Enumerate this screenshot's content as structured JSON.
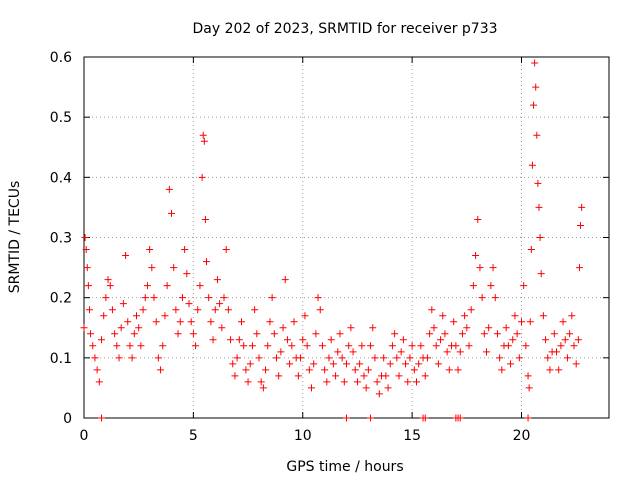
{
  "chart_data": {
    "type": "scatter",
    "title": "Day 202 of 2023, SRMTID for receiver p733",
    "xlabel": "GPS time / hours",
    "ylabel": "SRMTID / TECUs",
    "xlim": [
      0,
      24
    ],
    "ylim": [
      0,
      0.6
    ],
    "x_ticks": [
      0,
      5,
      10,
      15,
      20
    ],
    "x_tick_labels": [
      "0",
      "5",
      "10",
      "15",
      "20"
    ],
    "y_ticks": [
      0,
      0.1,
      0.2,
      0.3,
      0.4,
      0.5,
      0.6
    ],
    "y_tick_labels": [
      "0",
      "0.1",
      "0.2",
      "0.3",
      "0.4",
      "0.5",
      "0.6"
    ],
    "grid": true,
    "marker": "plus",
    "color": "#ff0000",
    "series": [
      {
        "name": "SRMTID",
        "points": [
          [
            0.0,
            0.15
          ],
          [
            0.05,
            0.3
          ],
          [
            0.1,
            0.28
          ],
          [
            0.15,
            0.25
          ],
          [
            0.2,
            0.22
          ],
          [
            0.25,
            0.18
          ],
          [
            0.3,
            0.14
          ],
          [
            0.4,
            0.12
          ],
          [
            0.5,
            0.1
          ],
          [
            0.6,
            0.08
          ],
          [
            0.7,
            0.06
          ],
          [
            0.8,
            0.13
          ],
          [
            0.9,
            0.17
          ],
          [
            1.0,
            0.2
          ],
          [
            1.1,
            0.23
          ],
          [
            1.2,
            0.22
          ],
          [
            1.3,
            0.18
          ],
          [
            1.4,
            0.14
          ],
          [
            1.5,
            0.12
          ],
          [
            1.6,
            0.1
          ],
          [
            1.7,
            0.15
          ],
          [
            1.8,
            0.19
          ],
          [
            1.9,
            0.27
          ],
          [
            2.0,
            0.16
          ],
          [
            2.1,
            0.12
          ],
          [
            2.2,
            0.1
          ],
          [
            2.3,
            0.14
          ],
          [
            2.4,
            0.17
          ],
          [
            2.5,
            0.15
          ],
          [
            2.6,
            0.12
          ],
          [
            2.7,
            0.18
          ],
          [
            2.8,
            0.2
          ],
          [
            2.9,
            0.22
          ],
          [
            3.0,
            0.28
          ],
          [
            3.1,
            0.25
          ],
          [
            3.2,
            0.2
          ],
          [
            3.3,
            0.16
          ],
          [
            3.4,
            0.1
          ],
          [
            3.5,
            0.08
          ],
          [
            3.6,
            0.12
          ],
          [
            3.7,
            0.17
          ],
          [
            3.8,
            0.22
          ],
          [
            3.9,
            0.38
          ],
          [
            4.0,
            0.34
          ],
          [
            4.1,
            0.25
          ],
          [
            4.2,
            0.18
          ],
          [
            4.3,
            0.14
          ],
          [
            4.4,
            0.16
          ],
          [
            4.5,
            0.2
          ],
          [
            4.6,
            0.28
          ],
          [
            4.7,
            0.24
          ],
          [
            4.8,
            0.19
          ],
          [
            4.9,
            0.16
          ],
          [
            5.0,
            0.14
          ],
          [
            5.1,
            0.12
          ],
          [
            5.2,
            0.18
          ],
          [
            5.3,
            0.22
          ],
          [
            5.4,
            0.4
          ],
          [
            5.45,
            0.47
          ],
          [
            5.5,
            0.46
          ],
          [
            5.55,
            0.33
          ],
          [
            5.6,
            0.26
          ],
          [
            5.7,
            0.2
          ],
          [
            5.8,
            0.16
          ],
          [
            5.9,
            0.13
          ],
          [
            6.0,
            0.18
          ],
          [
            6.1,
            0.23
          ],
          [
            6.2,
            0.19
          ],
          [
            6.3,
            0.15
          ],
          [
            6.4,
            0.2
          ],
          [
            6.5,
            0.28
          ],
          [
            6.6,
            0.18
          ],
          [
            6.7,
            0.13
          ],
          [
            6.8,
            0.09
          ],
          [
            6.9,
            0.07
          ],
          [
            7.0,
            0.1
          ],
          [
            7.1,
            0.13
          ],
          [
            7.2,
            0.16
          ],
          [
            7.3,
            0.12
          ],
          [
            7.4,
            0.08
          ],
          [
            7.5,
            0.06
          ],
          [
            7.6,
            0.09
          ],
          [
            7.7,
            0.12
          ],
          [
            7.8,
            0.18
          ],
          [
            7.9,
            0.14
          ],
          [
            8.0,
            0.1
          ],
          [
            8.1,
            0.06
          ],
          [
            8.2,
            0.05
          ],
          [
            8.3,
            0.08
          ],
          [
            8.4,
            0.12
          ],
          [
            8.5,
            0.16
          ],
          [
            8.6,
            0.2
          ],
          [
            8.7,
            0.14
          ],
          [
            8.8,
            0.1
          ],
          [
            8.9,
            0.07
          ],
          [
            9.0,
            0.11
          ],
          [
            9.1,
            0.15
          ],
          [
            9.2,
            0.23
          ],
          [
            9.3,
            0.13
          ],
          [
            9.4,
            0.09
          ],
          [
            9.5,
            0.12
          ],
          [
            9.6,
            0.16
          ],
          [
            9.7,
            0.1
          ],
          [
            9.8,
            0.07
          ],
          [
            9.9,
            0.1
          ],
          [
            10.0,
            0.13
          ],
          [
            10.1,
            0.17
          ],
          [
            10.2,
            0.12
          ],
          [
            10.3,
            0.08
          ],
          [
            10.4,
            0.05
          ],
          [
            10.5,
            0.09
          ],
          [
            10.6,
            0.14
          ],
          [
            10.7,
            0.2
          ],
          [
            10.8,
            0.18
          ],
          [
            10.9,
            0.12
          ],
          [
            11.0,
            0.08
          ],
          [
            11.1,
            0.06
          ],
          [
            11.2,
            0.1
          ],
          [
            11.3,
            0.13
          ],
          [
            11.4,
            0.09
          ],
          [
            11.5,
            0.07
          ],
          [
            11.6,
            0.11
          ],
          [
            11.7,
            0.14
          ],
          [
            11.8,
            0.1
          ],
          [
            11.9,
            0.06
          ],
          [
            12.0,
            0.09
          ],
          [
            12.1,
            0.12
          ],
          [
            12.2,
            0.15
          ],
          [
            12.3,
            0.11
          ],
          [
            12.4,
            0.08
          ],
          [
            12.5,
            0.06
          ],
          [
            12.6,
            0.09
          ],
          [
            12.7,
            0.12
          ],
          [
            12.8,
            0.07
          ],
          [
            12.9,
            0.05
          ],
          [
            13.0,
            0.08
          ],
          [
            13.1,
            0.12
          ],
          [
            13.2,
            0.15
          ],
          [
            13.3,
            0.1
          ],
          [
            13.4,
            0.06
          ],
          [
            13.5,
            0.04
          ],
          [
            13.6,
            0.07
          ],
          [
            13.7,
            0.1
          ],
          [
            13.8,
            0.07
          ],
          [
            13.9,
            0.05
          ],
          [
            14.0,
            0.09
          ],
          [
            14.1,
            0.12
          ],
          [
            14.2,
            0.14
          ],
          [
            14.3,
            0.1
          ],
          [
            14.4,
            0.07
          ],
          [
            14.5,
            0.11
          ],
          [
            14.6,
            0.13
          ],
          [
            14.7,
            0.09
          ],
          [
            14.8,
            0.06
          ],
          [
            14.9,
            0.1
          ],
          [
            15.0,
            0.12
          ],
          [
            15.1,
            0.08
          ],
          [
            15.2,
            0.06
          ],
          [
            15.3,
            0.09
          ],
          [
            15.4,
            0.12
          ],
          [
            15.5,
            0.1
          ],
          [
            15.6,
            0.07
          ],
          [
            15.7,
            0.1
          ],
          [
            15.8,
            0.14
          ],
          [
            15.9,
            0.18
          ],
          [
            16.0,
            0.15
          ],
          [
            16.1,
            0.12
          ],
          [
            16.2,
            0.09
          ],
          [
            16.3,
            0.13
          ],
          [
            16.4,
            0.17
          ],
          [
            16.5,
            0.14
          ],
          [
            16.6,
            0.11
          ],
          [
            16.7,
            0.08
          ],
          [
            16.8,
            0.12
          ],
          [
            16.9,
            0.16
          ],
          [
            17.0,
            0.12
          ],
          [
            17.1,
            0.08
          ],
          [
            17.2,
            0.11
          ],
          [
            17.3,
            0.14
          ],
          [
            17.4,
            0.17
          ],
          [
            17.5,
            0.15
          ],
          [
            17.6,
            0.12
          ],
          [
            17.7,
            0.18
          ],
          [
            17.8,
            0.22
          ],
          [
            17.9,
            0.27
          ],
          [
            18.0,
            0.33
          ],
          [
            18.1,
            0.25
          ],
          [
            18.2,
            0.2
          ],
          [
            18.3,
            0.14
          ],
          [
            18.4,
            0.11
          ],
          [
            18.5,
            0.15
          ],
          [
            18.6,
            0.22
          ],
          [
            18.7,
            0.25
          ],
          [
            18.8,
            0.2
          ],
          [
            18.9,
            0.14
          ],
          [
            19.0,
            0.1
          ],
          [
            19.1,
            0.08
          ],
          [
            19.2,
            0.12
          ],
          [
            19.3,
            0.15
          ],
          [
            19.4,
            0.12
          ],
          [
            19.5,
            0.09
          ],
          [
            19.6,
            0.13
          ],
          [
            19.7,
            0.17
          ],
          [
            19.8,
            0.14
          ],
          [
            19.9,
            0.1
          ],
          [
            20.0,
            0.16
          ],
          [
            20.1,
            0.22
          ],
          [
            20.2,
            0.12
          ],
          [
            20.3,
            0.07
          ],
          [
            20.35,
            0.05
          ],
          [
            20.4,
            0.16
          ],
          [
            20.45,
            0.28
          ],
          [
            20.5,
            0.42
          ],
          [
            20.55,
            0.52
          ],
          [
            20.6,
            0.59
          ],
          [
            20.65,
            0.55
          ],
          [
            20.7,
            0.47
          ],
          [
            20.75,
            0.39
          ],
          [
            20.8,
            0.35
          ],
          [
            20.85,
            0.3
          ],
          [
            20.9,
            0.24
          ],
          [
            21.0,
            0.17
          ],
          [
            21.1,
            0.13
          ],
          [
            21.2,
            0.1
          ],
          [
            21.3,
            0.08
          ],
          [
            21.4,
            0.11
          ],
          [
            21.5,
            0.14
          ],
          [
            21.6,
            0.11
          ],
          [
            21.7,
            0.08
          ],
          [
            21.8,
            0.12
          ],
          [
            21.9,
            0.16
          ],
          [
            22.0,
            0.13
          ],
          [
            22.1,
            0.1
          ],
          [
            22.2,
            0.14
          ],
          [
            22.3,
            0.17
          ],
          [
            22.4,
            0.12
          ],
          [
            22.5,
            0.09
          ],
          [
            22.6,
            0.13
          ],
          [
            22.65,
            0.25
          ],
          [
            22.7,
            0.32
          ],
          [
            22.75,
            0.35
          ]
        ]
      }
    ],
    "zero_points_x": [
      0.8,
      12.0,
      13.1,
      15.5,
      15.6,
      17.0,
      17.1,
      17.2,
      20.3
    ]
  }
}
